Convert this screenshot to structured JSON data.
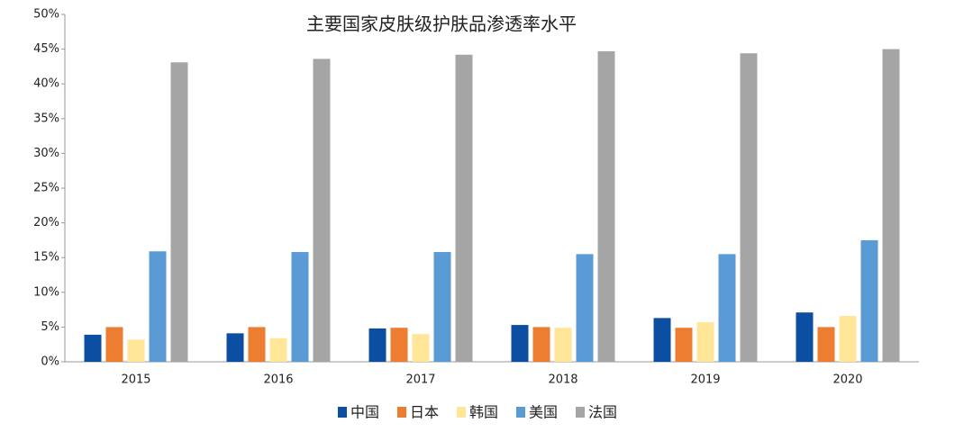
{
  "chart_data": {
    "type": "bar",
    "title": "主要国家皮肤级护肤品渗透率水平",
    "categories": [
      "2015",
      "2016",
      "2017",
      "2018",
      "2019",
      "2020"
    ],
    "series": [
      {
        "name": "中国",
        "color": "#0b4ea2",
        "values": [
          3.9,
          4.1,
          4.8,
          5.3,
          6.3,
          7.1
        ]
      },
      {
        "name": "日本",
        "color": "#ed7d31",
        "values": [
          5.0,
          5.0,
          4.9,
          5.0,
          4.9,
          5.0
        ]
      },
      {
        "name": "韩国",
        "color": "#ffe699",
        "values": [
          3.2,
          3.4,
          4.0,
          4.9,
          5.7,
          6.6
        ]
      },
      {
        "name": "美国",
        "color": "#5b9bd5",
        "values": [
          15.9,
          15.8,
          15.8,
          15.5,
          15.5,
          17.5
        ]
      },
      {
        "name": "法国",
        "color": "#a5a5a5",
        "values": [
          43.1,
          43.6,
          44.2,
          44.7,
          44.4,
          45.0
        ]
      }
    ],
    "ylim": [
      0,
      50
    ],
    "yticks": [
      {
        "value": 0,
        "label": "0%"
      },
      {
        "value": 5,
        "label": "5%"
      },
      {
        "value": 10,
        "label": "10%"
      },
      {
        "value": 15,
        "label": "15%"
      },
      {
        "value": 20,
        "label": "20%"
      },
      {
        "value": 25,
        "label": "25%"
      },
      {
        "value": 30,
        "label": "30%"
      },
      {
        "value": 35,
        "label": "35%"
      },
      {
        "value": 40,
        "label": "40%"
      },
      {
        "value": 45,
        "label": "45%"
      },
      {
        "value": 50,
        "label": "50%"
      }
    ],
    "grid": false,
    "legend": "bottom"
  }
}
